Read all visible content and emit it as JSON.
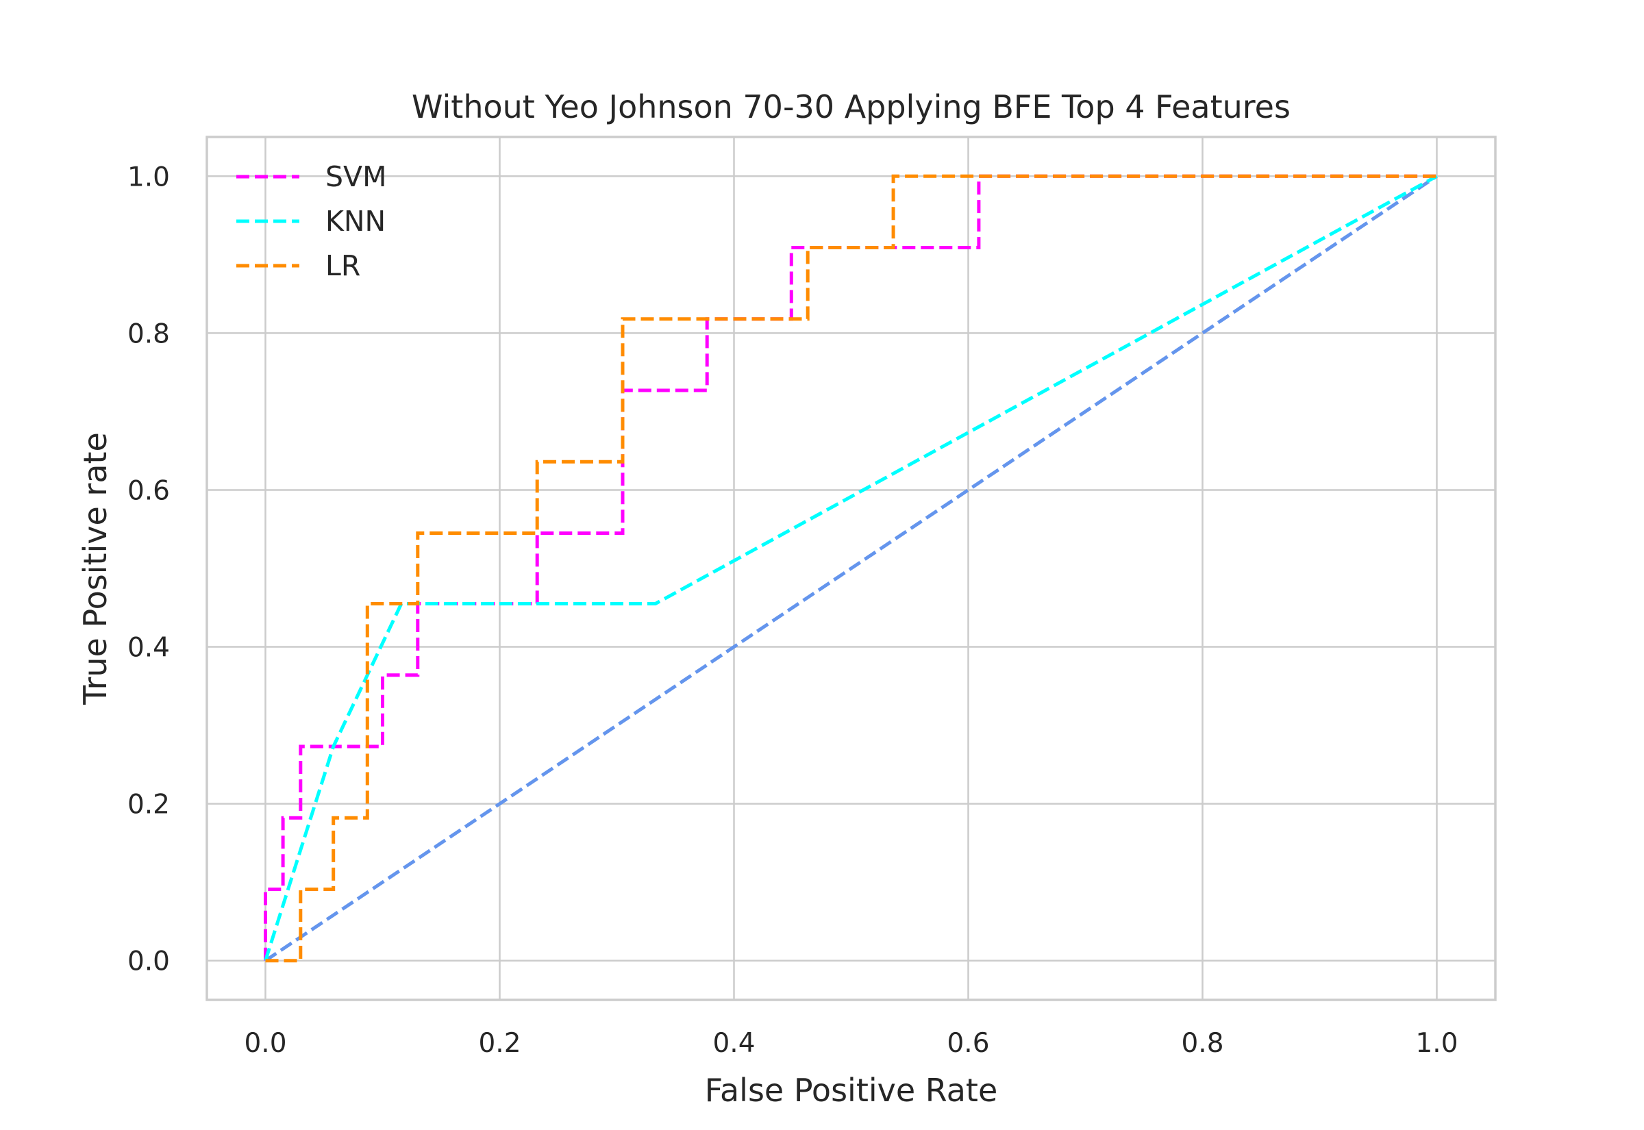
{
  "chart_data": {
    "type": "line",
    "title": "Without Yeo Johnson 70-30 Applying BFE Top 4 Features",
    "xlabel": "False Positive Rate",
    "ylabel": "True Positive rate",
    "xlim": [
      -0.05,
      1.05
    ],
    "ylim": [
      -0.05,
      1.05
    ],
    "xticks": [
      0.0,
      0.2,
      0.4,
      0.6,
      0.8,
      1.0
    ],
    "xtick_labels": [
      "0.0",
      "0.2",
      "0.4",
      "0.6",
      "0.8",
      "1.0"
    ],
    "yticks": [
      0.0,
      0.2,
      0.4,
      0.6,
      0.8,
      1.0
    ],
    "ytick_labels": [
      "0.0",
      "0.2",
      "0.4",
      "0.6",
      "0.8",
      "1.0"
    ],
    "grid": true,
    "legend_position": "upper-left",
    "series": [
      {
        "name": "SVM",
        "color": "#ff00ff",
        "style": "dashed",
        "x": [
          0.0,
          0.0,
          0.015,
          0.015,
          0.03,
          0.03,
          0.1,
          0.1,
          0.13,
          0.13,
          0.232,
          0.232,
          0.305,
          0.305,
          0.377,
          0.377,
          0.449,
          0.449,
          0.609,
          0.609,
          1.0
        ],
        "y": [
          0.0,
          0.091,
          0.091,
          0.182,
          0.182,
          0.273,
          0.273,
          0.364,
          0.364,
          0.455,
          0.455,
          0.545,
          0.545,
          0.727,
          0.727,
          0.818,
          0.818,
          0.909,
          0.909,
          1.0,
          1.0
        ]
      },
      {
        "name": "KNN",
        "color": "#00ffff",
        "style": "dashed",
        "x": [
          0.0,
          0.058,
          0.116,
          0.333,
          1.0
        ],
        "y": [
          0.0,
          0.273,
          0.455,
          0.455,
          1.0
        ]
      },
      {
        "name": "LR",
        "color": "#ff8c00",
        "style": "dashed",
        "x": [
          0.0,
          0.03,
          0.03,
          0.058,
          0.058,
          0.087,
          0.087,
          0.13,
          0.13,
          0.232,
          0.232,
          0.305,
          0.305,
          0.463,
          0.463,
          0.536,
          0.536,
          1.0
        ],
        "y": [
          0.0,
          0.0,
          0.091,
          0.091,
          0.182,
          0.182,
          0.455,
          0.455,
          0.545,
          0.545,
          0.636,
          0.636,
          0.818,
          0.818,
          0.909,
          0.909,
          1.0,
          1.0
        ]
      }
    ],
    "reference_line": {
      "color": "#6495ed",
      "style": "dashed",
      "x": [
        0.0,
        1.0
      ],
      "y": [
        0.0,
        1.0
      ]
    }
  }
}
